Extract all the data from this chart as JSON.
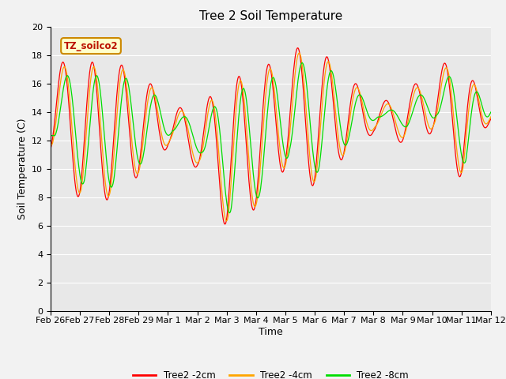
{
  "title": "Tree 2 Soil Temperature",
  "xlabel": "Time",
  "ylabel": "Soil Temperature (C)",
  "ylim": [
    0,
    20
  ],
  "yticks": [
    0,
    2,
    4,
    6,
    8,
    10,
    12,
    14,
    16,
    18,
    20
  ],
  "legend_label": "TZ_soilco2",
  "series_labels": [
    "Tree2 -2cm",
    "Tree2 -4cm",
    "Tree2 -8cm"
  ],
  "series_colors": [
    "#ff0000",
    "#ffa500",
    "#00dd00"
  ],
  "xtick_labels": [
    "Feb 26",
    "Feb 27",
    "Feb 28",
    "Feb 29",
    "Mar 1",
    "Mar 2",
    "Mar 3",
    "Mar 4",
    "Mar 5",
    "Mar 6",
    "Mar 7",
    "Mar 8",
    "Mar 9",
    "Mar 10",
    "Mar 11",
    "Mar 12"
  ],
  "background_color": "#e8e8e8",
  "fig_background": "#f2f2f2",
  "title_fontsize": 11,
  "axis_label_fontsize": 9,
  "tick_fontsize": 8,
  "peaks_2cm": [
    17.5,
    17.5,
    17.5,
    17.0,
    14.5,
    14.0,
    16.5,
    16.5,
    18.5,
    18.5,
    17.0,
    14.5,
    15.2,
    17.0,
    18.0,
    13.5
  ],
  "troughs_2cm": [
    11.0,
    7.8,
    7.8,
    9.5,
    11.5,
    10.0,
    5.8,
    7.2,
    10.0,
    8.7,
    10.8,
    12.5,
    11.8,
    12.5,
    9.2,
    13.5
  ],
  "n_days": 15,
  "pts_per_day": 48
}
